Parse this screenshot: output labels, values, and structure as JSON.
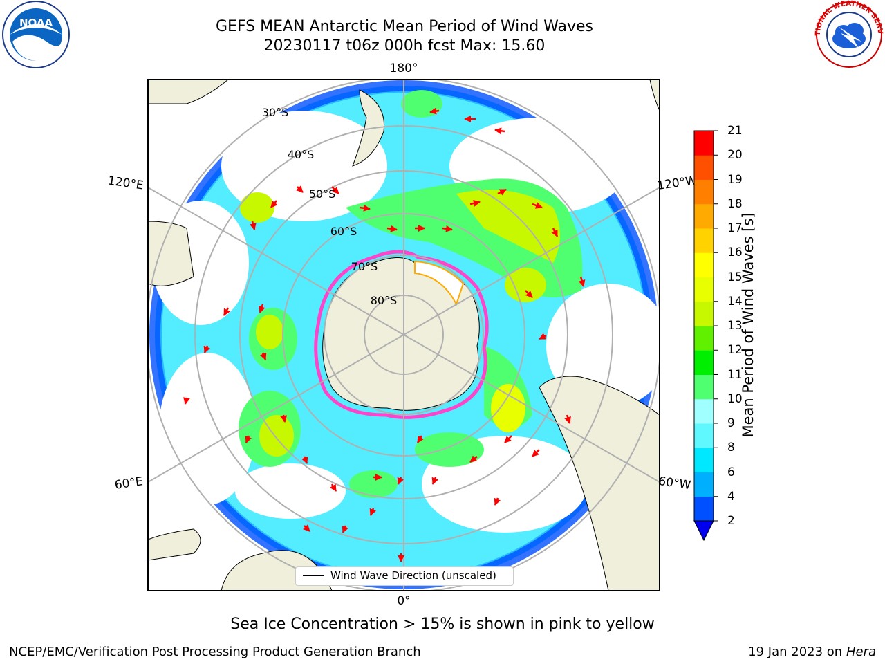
{
  "header": {
    "title_line1": "GEFS MEAN Antarctic Mean Period of Wind Waves",
    "title_line2": "20230117 t06z 000h fcst   Max: 15.60"
  },
  "logos": {
    "left": "noaa-logo",
    "left_text": "NOAA",
    "right": "nws-logo",
    "right_text": "NATIONAL WEATHER SERVICE"
  },
  "map": {
    "longitude_labels": {
      "top": "180°",
      "bottom": "0°",
      "upper_left": "120°E",
      "upper_right": "120°W",
      "lower_left": "60°E",
      "lower_right": "60°W"
    },
    "latitude_labels": [
      "30°S",
      "40°S",
      "50°S",
      "60°S",
      "70°S",
      "80°S"
    ],
    "legend_label": "Wind Wave Direction (unscaled)",
    "colors": {
      "land": "#efefdc",
      "grid": "#b0b0b0",
      "arrow": "#ff0000",
      "ice": "#ff44cc"
    }
  },
  "colorbar": {
    "label": "Mean Period of Wind Waves [s]",
    "ticks": [
      "2",
      "4",
      "6",
      "8",
      "9",
      "10",
      "11",
      "12",
      "13",
      "14",
      "15",
      "16",
      "17",
      "18",
      "19",
      "20",
      "21"
    ],
    "colors": [
      "#0050ff",
      "#00b0ff",
      "#00e8ff",
      "#60f8ff",
      "#a0ffff",
      "#50ff70",
      "#00ee00",
      "#60f000",
      "#c8f800",
      "#e8ff00",
      "#ffff00",
      "#ffd200",
      "#ffaa00",
      "#ff8000",
      "#ff5000",
      "#ff0000"
    ],
    "extend_color": "#0000ee"
  },
  "note": "Sea Ice Concentration > 15% is shown in pink to yellow",
  "footer": {
    "left": "NCEP/EMC/Verification Post Processing Product Generation Branch",
    "right_prefix": "19 Jan 2023 on ",
    "right_italic": "Hera"
  }
}
